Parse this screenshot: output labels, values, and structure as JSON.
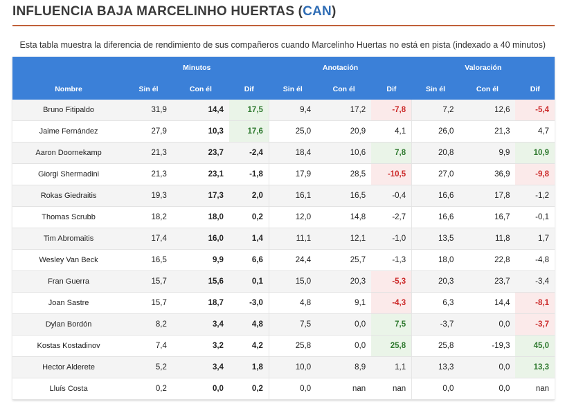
{
  "title": {
    "prefix": "INFLUENCIA BAJA MARCELINHO HUERTAS (",
    "team": "CAN",
    "suffix": ")"
  },
  "subtitle": "Esta tabla muestra la diferencia de rendimiento de sus compañeros cuando Marcelinho Huertas no está en pista (indexado a 40 minutos)",
  "colors": {
    "header_bg": "#3b80d8",
    "title_rule": "#c0603a",
    "team": "#2f6db5",
    "positive_bg": "#eaf4e8",
    "negative_bg": "#fbeaea",
    "negative_text": "#cc2a2a"
  },
  "table": {
    "groups": [
      "Minutos",
      "Anotación",
      "Valoración"
    ],
    "columns": [
      "Nombre",
      "Sin él",
      "Con él",
      "Dif",
      "Sin él",
      "Con él",
      "Dif",
      "Sin él",
      "Con él",
      "Dif"
    ],
    "rows": [
      {
        "name": "Bruno Fitipaldo",
        "cells": [
          "31,9",
          "14,4",
          "17,5",
          "9,4",
          "17,2",
          "-7,8",
          "7,2",
          "12,6",
          "-5,4"
        ],
        "hl": [
          "",
          "",
          "pos",
          "",
          "",
          "neg",
          "",
          "",
          "neg"
        ]
      },
      {
        "name": "Jaime Fernández",
        "cells": [
          "27,9",
          "10,3",
          "17,6",
          "25,0",
          "20,9",
          "4,1",
          "26,0",
          "21,3",
          "4,7"
        ],
        "hl": [
          "",
          "",
          "pos",
          "",
          "",
          "",
          "",
          "",
          ""
        ]
      },
      {
        "name": "Aaron Doornekamp",
        "cells": [
          "21,3",
          "23,7",
          "-2,4",
          "18,4",
          "10,6",
          "7,8",
          "20,8",
          "9,9",
          "10,9"
        ],
        "hl": [
          "",
          "",
          "",
          "",
          "",
          "pos",
          "",
          "",
          "pos"
        ]
      },
      {
        "name": "Giorgi Shermadini",
        "cells": [
          "21,3",
          "23,1",
          "-1,8",
          "17,9",
          "28,5",
          "-10,5",
          "27,0",
          "36,9",
          "-9,8"
        ],
        "hl": [
          "",
          "",
          "",
          "",
          "",
          "neg",
          "",
          "",
          "neg"
        ]
      },
      {
        "name": "Rokas Giedraitis",
        "cells": [
          "19,3",
          "17,3",
          "2,0",
          "16,1",
          "16,5",
          "-0,4",
          "16,6",
          "17,8",
          "-1,2"
        ],
        "hl": [
          "",
          "",
          "",
          "",
          "",
          "",
          "",
          "",
          ""
        ]
      },
      {
        "name": "Thomas Scrubb",
        "cells": [
          "18,2",
          "18,0",
          "0,2",
          "12,0",
          "14,8",
          "-2,7",
          "16,6",
          "16,7",
          "-0,1"
        ],
        "hl": [
          "",
          "",
          "",
          "",
          "",
          "",
          "",
          "",
          ""
        ]
      },
      {
        "name": "Tim Abromaitis",
        "cells": [
          "17,4",
          "16,0",
          "1,4",
          "11,1",
          "12,1",
          "-1,0",
          "13,5",
          "11,8",
          "1,7"
        ],
        "hl": [
          "",
          "",
          "",
          "",
          "",
          "",
          "",
          "",
          ""
        ]
      },
      {
        "name": "Wesley Van Beck",
        "cells": [
          "16,5",
          "9,9",
          "6,6",
          "24,4",
          "25,7",
          "-1,3",
          "18,0",
          "22,8",
          "-4,8"
        ],
        "hl": [
          "",
          "",
          "",
          "",
          "",
          "",
          "",
          "",
          ""
        ]
      },
      {
        "name": "Fran Guerra",
        "cells": [
          "15,7",
          "15,6",
          "0,1",
          "15,0",
          "20,3",
          "-5,3",
          "20,3",
          "23,7",
          "-3,4"
        ],
        "hl": [
          "",
          "",
          "",
          "",
          "",
          "neg",
          "",
          "",
          ""
        ]
      },
      {
        "name": "Joan Sastre",
        "cells": [
          "15,7",
          "18,7",
          "-3,0",
          "4,8",
          "9,1",
          "-4,3",
          "6,3",
          "14,4",
          "-8,1"
        ],
        "hl": [
          "",
          "",
          "",
          "",
          "",
          "neg",
          "",
          "",
          "neg"
        ]
      },
      {
        "name": "Dylan Bordón",
        "cells": [
          "8,2",
          "3,4",
          "4,8",
          "7,5",
          "0,0",
          "7,5",
          "-3,7",
          "0,0",
          "-3,7"
        ],
        "hl": [
          "",
          "",
          "",
          "",
          "",
          "pos",
          "",
          "",
          "neg"
        ]
      },
      {
        "name": "Kostas Kostadinov",
        "cells": [
          "7,4",
          "3,2",
          "4,2",
          "25,8",
          "0,0",
          "25,8",
          "25,8",
          "-19,3",
          "45,0"
        ],
        "hl": [
          "",
          "",
          "",
          "",
          "",
          "pos",
          "",
          "",
          "pos"
        ]
      },
      {
        "name": "Hector Alderete",
        "cells": [
          "5,2",
          "3,4",
          "1,8",
          "10,0",
          "8,9",
          "1,1",
          "13,3",
          "0,0",
          "13,3"
        ],
        "hl": [
          "",
          "",
          "",
          "",
          "",
          "",
          "",
          "",
          "pos"
        ]
      },
      {
        "name": "Lluís Costa",
        "cells": [
          "0,2",
          "0,0",
          "0,2",
          "0,0",
          "nan",
          "nan",
          "0,0",
          "0,0",
          "nan"
        ],
        "hl": [
          "",
          "",
          "",
          "",
          "",
          "",
          "",
          "",
          ""
        ]
      }
    ]
  }
}
